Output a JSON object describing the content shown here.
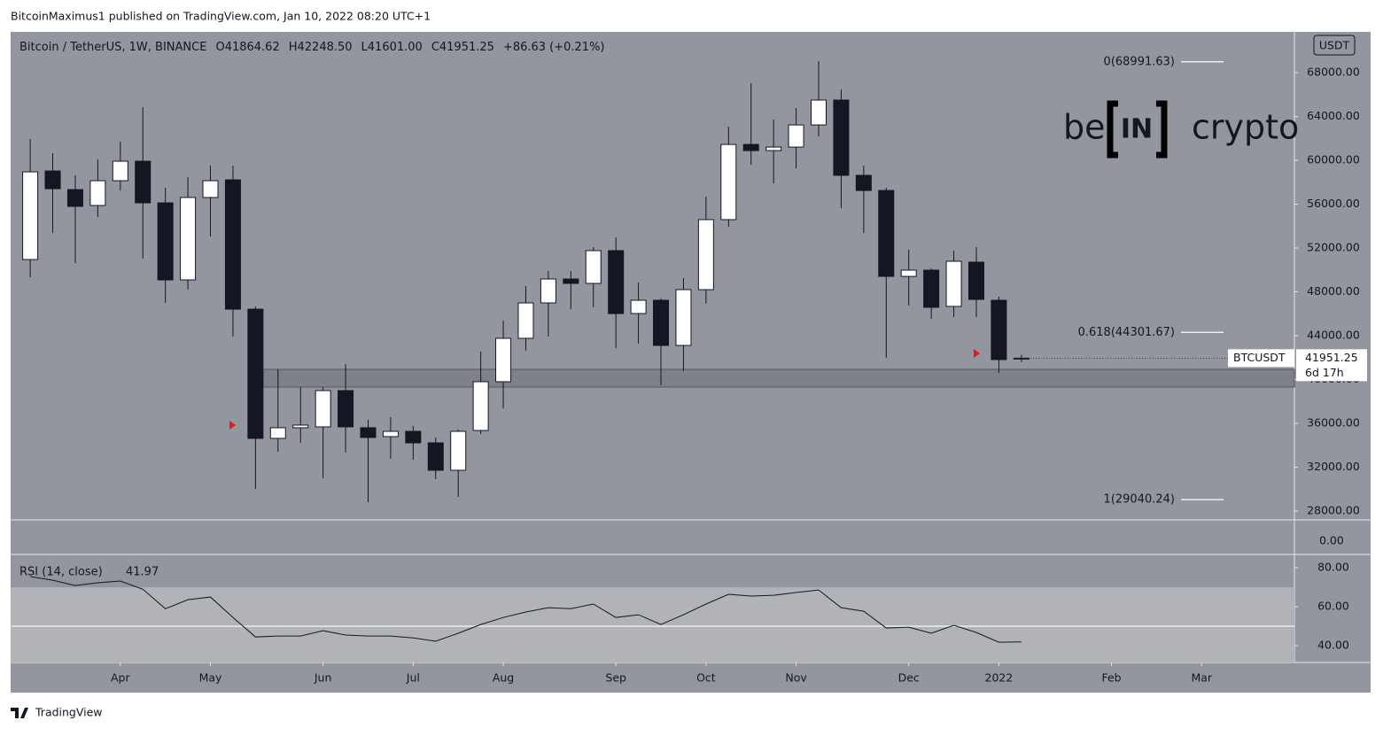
{
  "publisher": "BitcoinMaximus1 published on TradingView.com, Jan 10, 2022 08:20 UTC+1",
  "footer": "TradingView",
  "logo": {
    "left": "be",
    "middle": "IN",
    "right": "crypto"
  },
  "chart_data": {
    "type": "candlestick",
    "title": "Bitcoin / TetherUS, 1W, BINANCE",
    "header": [
      {
        "key": "O",
        "value": "41864.62"
      },
      {
        "key": "H",
        "value": "42248.50"
      },
      {
        "key": "L",
        "value": "41601.00"
      },
      {
        "key": "C",
        "value": "41951.25"
      }
    ],
    "change": "+86.63 (+0.21%)",
    "axis_unit": "USDT",
    "open": [
      50950,
      59030,
      57330,
      55880,
      58140,
      59920,
      56120,
      49090,
      56610,
      58220,
      46420,
      34630,
      35600,
      35680,
      38990,
      35600,
      34790,
      35270,
      34220,
      31720,
      35350,
      39800,
      43760,
      46990,
      49170,
      48770,
      51760,
      46020,
      47230,
      43110,
      48200,
      54590,
      61450,
      60890,
      61210,
      63230,
      65500,
      58630,
      57250,
      49410,
      49980,
      46670,
      50710,
      47230,
      41864.62
    ],
    "high": [
      61940,
      60650,
      58630,
      60080,
      61700,
      64850,
      57500,
      58470,
      59520,
      59520,
      46670,
      40930,
      39310,
      39310,
      41410,
      36320,
      36570,
      35760,
      34710,
      35430,
      42550,
      45370,
      48530,
      49900,
      49900,
      52080,
      52970,
      48850,
      47390,
      49250,
      56690,
      63070,
      67030,
      63720,
      64770,
      69050,
      66470,
      59520,
      57500,
      51840,
      50140,
      51760,
      52080,
      47560,
      42248.5
    ],
    "low": [
      49330,
      53370,
      50630,
      54830,
      57250,
      51030,
      46990,
      48200,
      53050,
      43920,
      30020,
      33410,
      34220,
      30990,
      33330,
      28810,
      32770,
      32690,
      30910,
      29290,
      35030,
      37370,
      42630,
      43920,
      46420,
      46590,
      42870,
      43270,
      39480,
      40770,
      46910,
      53940,
      59600,
      57900,
      59270,
      62180,
      55640,
      53370,
      41980,
      46750,
      45540,
      45700,
      45700,
      40610,
      41601
    ],
    "close": [
      58950,
      57410,
      55800,
      58140,
      59920,
      56120,
      49090,
      56610,
      58140,
      46420,
      34630,
      35600,
      35840,
      38990,
      35680,
      34710,
      35270,
      34220,
      31720,
      35270,
      39800,
      43760,
      46990,
      49170,
      48770,
      51760,
      46020,
      47230,
      43110,
      48200,
      54590,
      61450,
      60890,
      61210,
      63230,
      65500,
      58630,
      57250,
      49410,
      49980,
      46590,
      50790,
      47310,
      41820,
      41951.25
    ],
    "up_color": "#ffffff",
    "down_color": "#131722",
    "xlim": [
      -0.83,
      56.12
    ],
    "xticks": [
      {
        "value": 4,
        "label": "Apr"
      },
      {
        "value": 8,
        "label": "May"
      },
      {
        "value": 13,
        "label": "Jun"
      },
      {
        "value": 17,
        "label": "Jul"
      },
      {
        "value": 21,
        "label": "Aug"
      },
      {
        "value": 26,
        "label": "Sep"
      },
      {
        "value": 30,
        "label": "Oct"
      },
      {
        "value": 34,
        "label": "Nov"
      },
      {
        "value": 39,
        "label": "Dec"
      },
      {
        "value": 43,
        "label": "2022"
      },
      {
        "value": 48,
        "label": "Feb"
      },
      {
        "value": 52,
        "label": "Mar"
      }
    ],
    "ylim": [
      27190,
      71560
    ],
    "yticks": [
      {
        "value": 28000,
        "label": "28000.00"
      },
      {
        "value": 32000,
        "label": "32000.00"
      },
      {
        "value": 36000,
        "label": "36000.00"
      },
      {
        "value": 40000,
        "label": "40000.00"
      },
      {
        "value": 44000,
        "label": "44000.00"
      },
      {
        "value": 48000,
        "label": "48000.00"
      },
      {
        "value": 52000,
        "label": "52000.00"
      },
      {
        "value": 56000,
        "label": "56000.00"
      },
      {
        "value": 60000,
        "label": "60000.00"
      },
      {
        "value": 64000,
        "label": "64000.00"
      },
      {
        "value": 68000,
        "label": "68000.00"
      }
    ],
    "fib_levels": [
      {
        "value": 68991.63,
        "label": "0(68991.63)"
      },
      {
        "value": 44301.67,
        "label": "0.618(44301.67)"
      },
      {
        "value": 29040.24,
        "label": "1(29040.24)"
      }
    ],
    "support_zone": [
      39310,
      40930
    ],
    "last_price": {
      "symbol": "BTCUSDT",
      "value": 41951.25,
      "countdown": "6d 17h"
    },
    "volume_pane_label": "0.00",
    "rsi": {
      "type": "line",
      "title": "RSI (14, close)",
      "current": 41.97,
      "color": "#131722",
      "values": [
        75.5,
        73.6,
        70.9,
        72.3,
        73.2,
        69,
        59,
        63.6,
        65,
        54.5,
        44.5,
        45,
        45,
        47.7,
        45.5,
        45,
        45,
        44,
        42.3,
        46.4,
        50.9,
        54.5,
        57.3,
        59.5,
        59,
        61.4,
        54.5,
        55.9,
        50.9,
        55.9,
        61.4,
        66.4,
        65.5,
        65.9,
        67.3,
        68.6,
        59.5,
        57.7,
        49.1,
        49.5,
        46.4,
        50.5,
        46.8,
        41.8,
        41.97
      ],
      "ylim": [
        31.4,
        86.4
      ],
      "yticks": [
        {
          "value": 40,
          "label": "40.00"
        },
        {
          "value": 60,
          "label": "60.00"
        },
        {
          "value": 80,
          "label": "80.00"
        }
      ],
      "band": [
        30,
        70
      ],
      "midline": 50
    }
  }
}
